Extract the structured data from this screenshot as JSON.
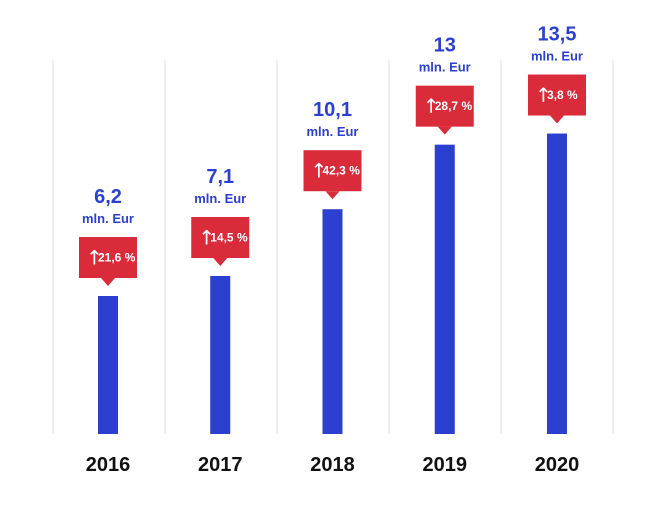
{
  "chart_data": {
    "type": "bar",
    "title": "",
    "xlabel": "",
    "ylabel": "",
    "categories": [
      "2016",
      "2017",
      "2018",
      "2019",
      "2020"
    ],
    "values": [
      6.2,
      7.1,
      10.1,
      13,
      13.5
    ],
    "value_labels": [
      "6,2",
      "7,1",
      "10,1",
      "13",
      "13,5"
    ],
    "unit_label": "mln. Eur",
    "growth": [
      {
        "arrow": "↑",
        "text": "21,6 %"
      },
      {
        "arrow": "↑",
        "text": "14,5 %"
      },
      {
        "arrow": "↑",
        "text": "42,3 %"
      },
      {
        "arrow": "↑",
        "text": "28,7 %"
      },
      {
        "arrow": "↑",
        "text": "3,8 %"
      }
    ],
    "ylim": [
      0,
      19.5
    ],
    "grid": false
  },
  "colors": {
    "bar": "#2b3fd1",
    "value_text": "#2b3fd1",
    "callout": "#d92b3a",
    "callout_text": "#ffffff",
    "year_text": "#111111",
    "divider": "#dedede"
  }
}
